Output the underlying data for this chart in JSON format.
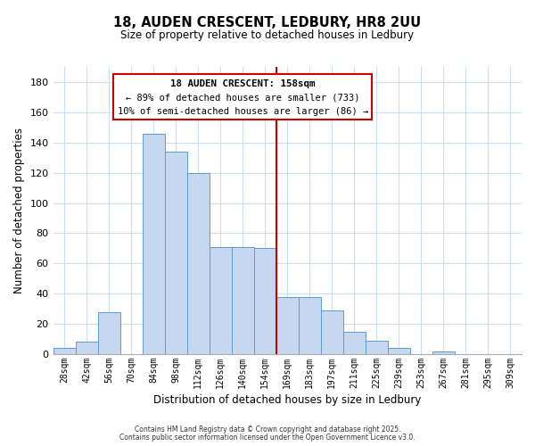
{
  "title": "18, AUDEN CRESCENT, LEDBURY, HR8 2UU",
  "subtitle": "Size of property relative to detached houses in Ledbury",
  "xlabel": "Distribution of detached houses by size in Ledbury",
  "ylabel": "Number of detached properties",
  "bar_labels": [
    "28sqm",
    "42sqm",
    "56sqm",
    "70sqm",
    "84sqm",
    "98sqm",
    "112sqm",
    "126sqm",
    "140sqm",
    "154sqm",
    "169sqm",
    "183sqm",
    "197sqm",
    "211sqm",
    "225sqm",
    "239sqm",
    "253sqm",
    "267sqm",
    "281sqm",
    "295sqm",
    "309sqm"
  ],
  "bar_heights": [
    4,
    8,
    28,
    0,
    146,
    134,
    120,
    71,
    71,
    70,
    38,
    38,
    29,
    15,
    9,
    4,
    0,
    2,
    0,
    0,
    0
  ],
  "bar_color": "#c5d8f0",
  "bar_edge_color": "#5b9bd5",
  "vline_x": 9.5,
  "vline_color": "#cc0000",
  "annotation_title": "18 AUDEN CRESCENT: 158sqm",
  "annotation_line1": "← 89% of detached houses are smaller (733)",
  "annotation_line2": "10% of semi-detached houses are larger (86) →",
  "annotation_box_color": "#ffffff",
  "annotation_box_edge": "#cc0000",
  "ylim": [
    0,
    190
  ],
  "yticks": [
    0,
    20,
    40,
    60,
    80,
    100,
    120,
    140,
    160,
    180
  ],
  "footer1": "Contains HM Land Registry data © Crown copyright and database right 2025.",
  "footer2": "Contains public sector information licensed under the Open Government Licence v3.0.",
  "bg_color": "#ffffff",
  "grid_color": "#c8dff0"
}
